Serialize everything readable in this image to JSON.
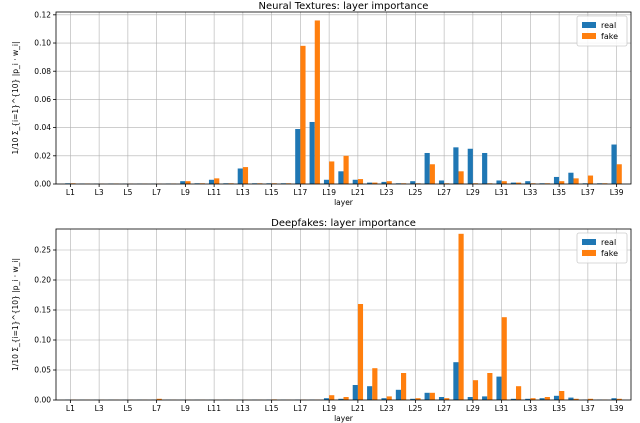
{
  "chart_data": [
    {
      "type": "bar",
      "title": "Neural Textures: layer importance",
      "xlabel": "layer",
      "ylabel": "1/10 Σ_{i=1}^{10} |p_i · w_i|",
      "ylim": [
        0,
        0.122
      ],
      "yticks": [
        0.0,
        0.02,
        0.04,
        0.06,
        0.08,
        0.1,
        0.12
      ],
      "ytick_labels": [
        "0.00",
        "0.02",
        "0.04",
        "0.06",
        "0.08",
        "0.10",
        "0.12"
      ],
      "categories": [
        "L1",
        "L2",
        "L3",
        "L4",
        "L5",
        "L6",
        "L7",
        "L8",
        "L9",
        "L10",
        "L11",
        "L12",
        "L13",
        "L14",
        "L15",
        "L16",
        "L17",
        "L18",
        "L19",
        "L20",
        "L21",
        "L22",
        "L23",
        "L24",
        "L25",
        "L26",
        "L27",
        "L28",
        "L29",
        "L30",
        "L31",
        "L32",
        "L33",
        "L34",
        "L35",
        "L36",
        "L37",
        "L38",
        "L39"
      ],
      "xtick_labels": [
        "L1",
        "L3",
        "L5",
        "L7",
        "L9",
        "L11",
        "L13",
        "L15",
        "L17",
        "L19",
        "L21",
        "L23",
        "L25",
        "L27",
        "L29",
        "L31",
        "L33",
        "L35",
        "L37",
        "L39"
      ],
      "grid": true,
      "legend_position": "top-right",
      "series": [
        {
          "name": "real",
          "color": "#1f77b4",
          "values": [
            0.0005,
            0.0003,
            0.0002,
            0.0003,
            0.0002,
            0.0002,
            0.0002,
            0.0003,
            0.002,
            0.0005,
            0.003,
            0.0005,
            0.011,
            0.0005,
            0.0005,
            0.0005,
            0.039,
            0.044,
            0.003,
            0.009,
            0.003,
            0.001,
            0.0015,
            0.0005,
            0.002,
            0.022,
            0.0025,
            0.026,
            0.025,
            0.022,
            0.0025,
            0.001,
            0.002,
            0.0005,
            0.005,
            0.008,
            0.0005,
            0.0005,
            0.028
          ]
        },
        {
          "name": "fake",
          "color": "#ff7f0e",
          "values": [
            0.0005,
            0.0003,
            0.0002,
            0.0003,
            0.0002,
            0.0002,
            0.0002,
            0.0003,
            0.002,
            0.0005,
            0.004,
            0.0005,
            0.012,
            0.0005,
            0.0005,
            0.0005,
            0.098,
            0.116,
            0.016,
            0.02,
            0.0035,
            0.001,
            0.002,
            0.0005,
            0.0005,
            0.014,
            0.0005,
            0.009,
            0.0005,
            0.0005,
            0.002,
            0.001,
            0.0005,
            0.0005,
            0.002,
            0.004,
            0.006,
            0.0005,
            0.014
          ]
        }
      ]
    },
    {
      "type": "bar",
      "title": "Deepfakes: layer importance",
      "xlabel": "layer",
      "ylabel": "1/10 Σ_{i=1}^{10} |p_i · w_i|",
      "ylim": [
        0,
        0.285
      ],
      "yticks": [
        0.0,
        0.05,
        0.1,
        0.15,
        0.2,
        0.25
      ],
      "ytick_labels": [
        "0.00",
        "0.05",
        "0.10",
        "0.15",
        "0.20",
        "0.25"
      ],
      "categories": [
        "L1",
        "L2",
        "L3",
        "L4",
        "L5",
        "L6",
        "L7",
        "L8",
        "L9",
        "L10",
        "L11",
        "L12",
        "L13",
        "L14",
        "L15",
        "L16",
        "L17",
        "L18",
        "L19",
        "L20",
        "L21",
        "L22",
        "L23",
        "L24",
        "L25",
        "L26",
        "L27",
        "L28",
        "L29",
        "L30",
        "L31",
        "L32",
        "L33",
        "L34",
        "L35",
        "L36",
        "L37",
        "L38",
        "L39"
      ],
      "xtick_labels": [
        "L1",
        "L3",
        "L5",
        "L7",
        "L9",
        "L11",
        "L13",
        "L15",
        "L17",
        "L19",
        "L21",
        "L23",
        "L25",
        "L27",
        "L29",
        "L31",
        "L33",
        "L35",
        "L37",
        "L39"
      ],
      "grid": true,
      "legend_position": "top-right",
      "series": [
        {
          "name": "real",
          "color": "#1f77b4",
          "values": [
            0.0005,
            0.0003,
            0.0003,
            0.0003,
            0.0003,
            0.0003,
            0.0005,
            0.0003,
            0.0003,
            0.0003,
            0.0003,
            0.0003,
            0.0003,
            0.0003,
            0.0005,
            0.0003,
            0.0005,
            0.0005,
            0.003,
            0.002,
            0.025,
            0.023,
            0.003,
            0.017,
            0.002,
            0.012,
            0.005,
            0.063,
            0.005,
            0.006,
            0.039,
            0.002,
            0.002,
            0.003,
            0.007,
            0.004,
            0.0005,
            0.0005,
            0.003
          ]
        },
        {
          "name": "fake",
          "color": "#ff7f0e",
          "values": [
            0.0005,
            0.0003,
            0.0003,
            0.0003,
            0.0003,
            0.0003,
            0.002,
            0.0003,
            0.0003,
            0.0003,
            0.0003,
            0.0003,
            0.0003,
            0.0003,
            0.001,
            0.0003,
            0.0005,
            0.0005,
            0.008,
            0.005,
            0.16,
            0.053,
            0.006,
            0.045,
            0.003,
            0.012,
            0.003,
            0.277,
            0.033,
            0.045,
            0.138,
            0.023,
            0.003,
            0.005,
            0.015,
            0.002,
            0.002,
            0.0005,
            0.002
          ]
        }
      ]
    }
  ]
}
